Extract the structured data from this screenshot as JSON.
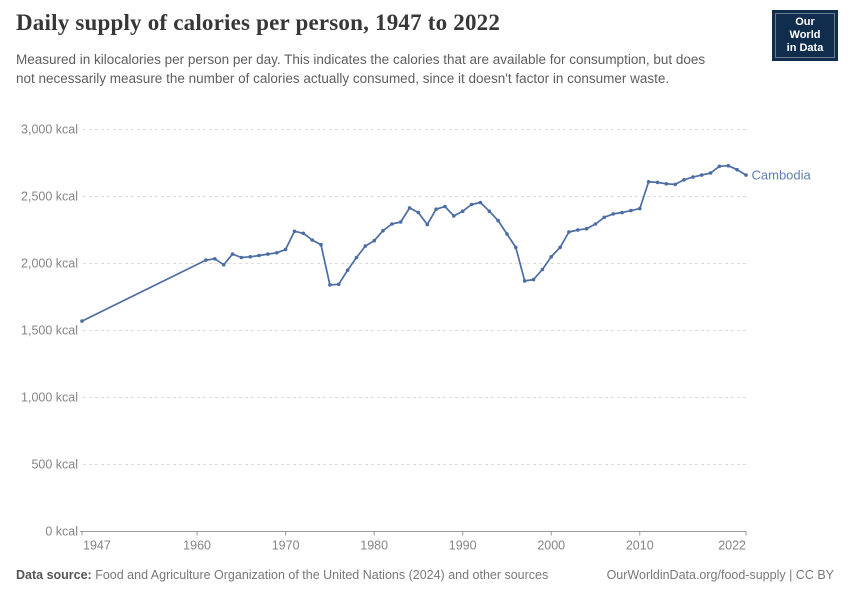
{
  "header": {
    "title": "Daily supply of calories per person, 1947 to 2022",
    "subtitle": "Measured in kilocalories per person per day. This indicates the calories that are available for consumption, but does not necessarily measure the number of calories actually consumed, since it doesn't factor in consumer waste.",
    "logo_line1": "Our World",
    "logo_line2": "in Data"
  },
  "colors": {
    "line": "#4C6CA4",
    "entity_label": "#5E80B4",
    "grid": "#dcdcdc",
    "axis": "#9a9a9a",
    "tick_text": "#858585",
    "logo_bg": "#102D4E",
    "logo_stripe": "#A12B2B"
  },
  "chart_data": {
    "type": "line",
    "title": "Daily supply of calories per person, 1947 to 2022",
    "xlabel": "",
    "ylabel": "",
    "xlim": [
      1947,
      2022
    ],
    "ylim": [
      0,
      3000
    ],
    "x_ticks": [
      1947,
      1960,
      1970,
      1980,
      1990,
      2000,
      2010,
      2022
    ],
    "y_ticks": [
      0,
      500,
      1000,
      1500,
      2000,
      2500,
      3000
    ],
    "y_tick_suffix": " kcal",
    "grid": "dashed-horizontal",
    "legend_position": "end-of-line-label",
    "series": [
      {
        "name": "Cambodia",
        "points": [
          [
            1947,
            1570
          ],
          [
            1961,
            2025
          ],
          [
            1962,
            2035
          ],
          [
            1963,
            1990
          ],
          [
            1964,
            2070
          ],
          [
            1965,
            2045
          ],
          [
            1966,
            2050
          ],
          [
            1967,
            2060
          ],
          [
            1968,
            2070
          ],
          [
            1969,
            2080
          ],
          [
            1970,
            2105
          ],
          [
            1971,
            2240
          ],
          [
            1972,
            2225
          ],
          [
            1973,
            2175
          ],
          [
            1974,
            2140
          ],
          [
            1975,
            1840
          ],
          [
            1976,
            1845
          ],
          [
            1977,
            1950
          ],
          [
            1978,
            2045
          ],
          [
            1979,
            2130
          ],
          [
            1980,
            2170
          ],
          [
            1981,
            2245
          ],
          [
            1982,
            2295
          ],
          [
            1983,
            2310
          ],
          [
            1984,
            2415
          ],
          [
            1985,
            2380
          ],
          [
            1986,
            2290
          ],
          [
            1987,
            2405
          ],
          [
            1988,
            2425
          ],
          [
            1989,
            2355
          ],
          [
            1990,
            2390
          ],
          [
            1991,
            2440
          ],
          [
            1992,
            2455
          ],
          [
            1993,
            2390
          ],
          [
            1994,
            2320
          ],
          [
            1995,
            2220
          ],
          [
            1996,
            2120
          ],
          [
            1997,
            1870
          ],
          [
            1998,
            1880
          ],
          [
            1999,
            1955
          ],
          [
            2000,
            2050
          ],
          [
            2001,
            2120
          ],
          [
            2002,
            2235
          ],
          [
            2003,
            2250
          ],
          [
            2004,
            2260
          ],
          [
            2005,
            2295
          ],
          [
            2006,
            2345
          ],
          [
            2007,
            2370
          ],
          [
            2008,
            2380
          ],
          [
            2009,
            2395
          ],
          [
            2010,
            2410
          ],
          [
            2011,
            2610
          ],
          [
            2012,
            2605
          ],
          [
            2013,
            2595
          ],
          [
            2014,
            2590
          ],
          [
            2015,
            2625
          ],
          [
            2016,
            2645
          ],
          [
            2017,
            2660
          ],
          [
            2018,
            2675
          ],
          [
            2019,
            2725
          ],
          [
            2020,
            2730
          ],
          [
            2021,
            2700
          ],
          [
            2022,
            2660
          ]
        ]
      }
    ]
  },
  "footer": {
    "source_label": "Data source:",
    "source_text": " Food and Agriculture Organization of the United Nations (2024) and other sources",
    "credit": "OurWorldinData.org/food-supply | CC BY"
  }
}
